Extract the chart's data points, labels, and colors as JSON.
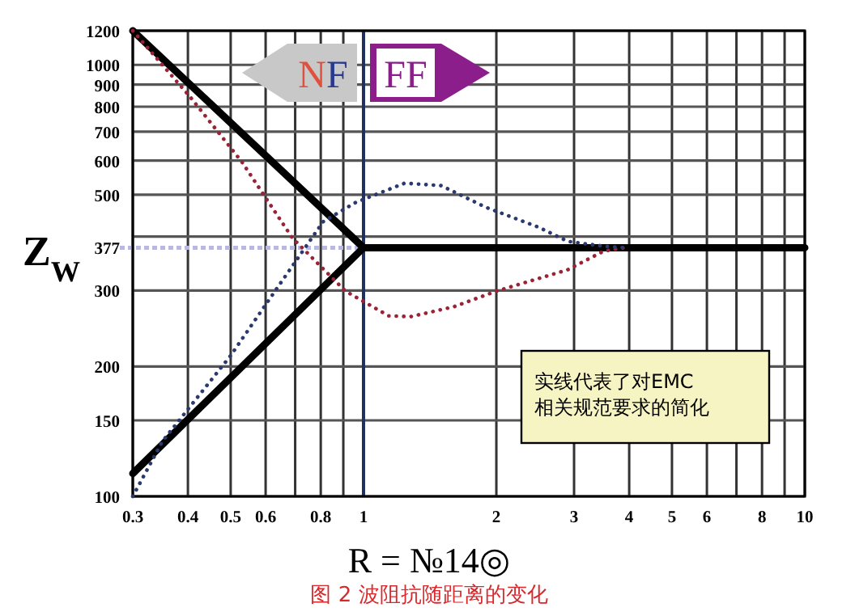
{
  "chart_data": {
    "type": "line",
    "title": "图 2 波阻抗随距离的变化",
    "xlabel": "R = №14◎",
    "ylabel": "Z$_{W}$",
    "log": "xy",
    "xlim": [
      0.3,
      10
    ],
    "ylim": [
      100,
      1200
    ],
    "xticks": [
      0.3,
      0.4,
      0.5,
      0.6,
      {
        "value": 0.7,
        "label": null
      },
      0.8,
      {
        "value": 0.9,
        "label": null
      },
      1,
      2,
      3,
      4,
      5,
      6,
      {
        "value": 7,
        "label": null
      },
      8,
      {
        "value": 9,
        "label": null
      },
      10
    ],
    "yticks": [
      100,
      150,
      200,
      300,
      377,
      {
        "value": 400,
        "label": null
      },
      500,
      600,
      700,
      800,
      900,
      1000,
      1200
    ],
    "grid": true,
    "marker": "none",
    "series": [
      {
        "color": "#000000",
        "line_style": "solid",
        "x": [
          0.3,
          1,
          10
        ],
        "values": [
          1200,
          377,
          377
        ]
      },
      {
        "color": "#000000",
        "line_style": "solid",
        "x": [
          0.3,
          1
        ],
        "values": [
          113,
          377
        ]
      },
      {
        "color": "#9b2335",
        "line_style": "dotted",
        "x": [
          0.3,
          0.405,
          0.53,
          0.69,
          0.91,
          1.14,
          1.28,
          1.6,
          2.0,
          2.9,
          3.5,
          3.9
        ],
        "values": [
          1200,
          842,
          596,
          397,
          299,
          262,
          261,
          275,
          299,
          335,
          370,
          377
        ]
      },
      {
        "color": "#2a3a6e",
        "line_style": "dotted",
        "x": [
          0.3,
          0.35,
          0.5,
          0.63,
          0.81,
          0.96,
          1.24,
          1.5,
          1.89,
          2.5,
          2.9,
          3.5,
          3.9
        ],
        "values": [
          100,
          134,
          212,
          299,
          433,
          480,
          532,
          525,
          468,
          420,
          390,
          380,
          377
        ]
      }
    ],
    "ref_lines": [
      {
        "axis": "y",
        "value": 377,
        "color": "#b8b8e0",
        "line_style": "dashed"
      },
      {
        "axis": "x",
        "value": 1,
        "color": "#1f2f5f",
        "line_style": "solid"
      }
    ],
    "annotations": [
      "NF",
      "FF",
      "实线代表了对EMC\n相关规范要求的简化"
    ]
  }
}
